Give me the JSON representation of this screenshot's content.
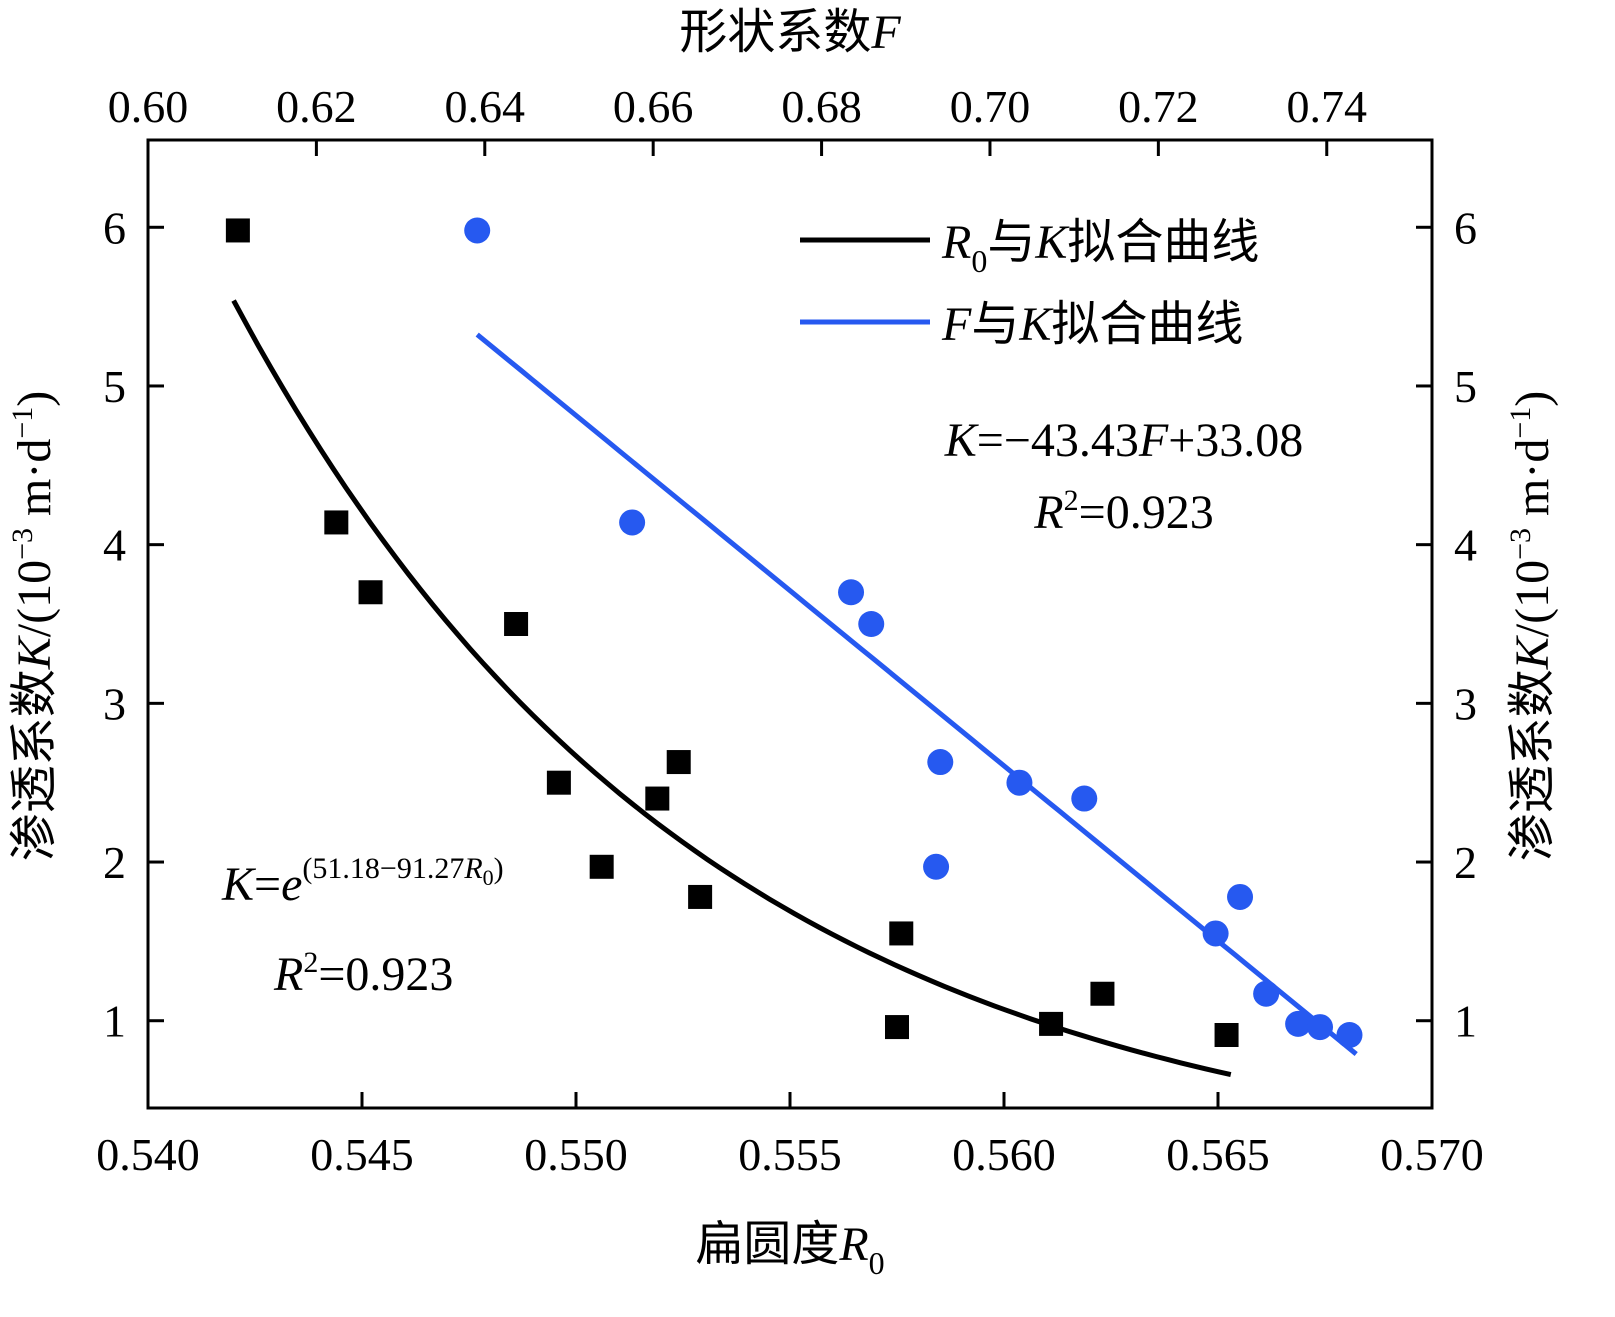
{
  "chart_data": {
    "type": "scatter",
    "title": "",
    "x_bottom": {
      "label": "扁圆度R0",
      "label_main": "扁圆度",
      "label_var": "R",
      "label_sub": "0",
      "range": [
        0.54,
        0.57
      ],
      "ticks": [
        "0.540",
        "0.545",
        "0.550",
        "0.555",
        "0.560",
        "0.565",
        "0.570"
      ],
      "tick_values": [
        0.54,
        0.545,
        0.55,
        0.555,
        0.56,
        0.565,
        0.57
      ]
    },
    "x_top": {
      "label": "形状系数F",
      "label_main": "形状系数",
      "label_var": "F",
      "range": [
        0.6,
        0.7525
      ],
      "ticks": [
        "0.60",
        "0.62",
        "0.64",
        "0.66",
        "0.68",
        "0.70",
        "0.72",
        "0.74"
      ],
      "tick_values": [
        0.6,
        0.62,
        0.64,
        0.66,
        0.68,
        0.7,
        0.72,
        0.74
      ]
    },
    "y": {
      "label": "渗透系数K/(10−3 m·d−1)",
      "label_main": "渗透系数",
      "label_var": "K",
      "label_unit_a": "/(10",
      "label_sup1": "−3",
      "label_unit_b": " m·d",
      "label_sup2": "−1",
      "label_unit_c": ")",
      "range": [
        0.45,
        6.55
      ],
      "ticks": [
        "1",
        "2",
        "3",
        "4",
        "5",
        "6"
      ],
      "tick_values": [
        1,
        2,
        3,
        4,
        5,
        6
      ]
    },
    "series": [
      {
        "name": "R0与K拟合曲线",
        "marker": "square",
        "color": "#000000",
        "axis": "bottom",
        "points": [
          [
            0.5421,
            5.98
          ],
          [
            0.5444,
            4.14
          ],
          [
            0.5452,
            3.7
          ],
          [
            0.5486,
            3.5
          ],
          [
            0.5496,
            2.5
          ],
          [
            0.5506,
            1.97
          ],
          [
            0.5519,
            2.4
          ],
          [
            0.5524,
            2.63
          ],
          [
            0.5529,
            1.78
          ],
          [
            0.5575,
            0.96
          ],
          [
            0.5576,
            1.55
          ],
          [
            0.5611,
            0.98
          ],
          [
            0.5623,
            1.17
          ],
          [
            0.5652,
            0.91
          ]
        ],
        "fit": {
          "kind": "exp",
          "a": 51.18,
          "b": 91.27,
          "x_start": 0.542,
          "x_end": 0.5653
        }
      },
      {
        "name": "F与K拟合曲线",
        "marker": "circle",
        "color": "#2659F0",
        "axis": "top",
        "points": [
          [
            0.6391,
            5.98
          ],
          [
            0.6575,
            4.14
          ],
          [
            0.6835,
            3.7
          ],
          [
            0.6859,
            3.5
          ],
          [
            0.6941,
            2.63
          ],
          [
            0.6936,
            1.97
          ],
          [
            0.7035,
            2.5
          ],
          [
            0.7112,
            2.4
          ],
          [
            0.7268,
            1.55
          ],
          [
            0.7297,
            1.78
          ],
          [
            0.7328,
            1.17
          ],
          [
            0.7366,
            0.98
          ],
          [
            0.7392,
            0.96
          ],
          [
            0.7427,
            0.91
          ]
        ],
        "fit": {
          "kind": "linear",
          "slope": -43.43,
          "intercept": 33.08,
          "x_start": 0.6391,
          "x_end": 0.7435
        }
      }
    ],
    "legend": {
      "placement": "top-right",
      "items": [
        {
          "var": "R",
          "sub": "0",
          "text": "与K拟合曲线",
          "text_a": "与",
          "var2": "K",
          "text_b": "拟合曲线",
          "color": "#000000"
        },
        {
          "var": "F",
          "sub": "",
          "text": "与K拟合曲线",
          "text_a": "与",
          "var2": "K",
          "text_b": "拟合曲线",
          "color": "#2659F0"
        }
      ]
    },
    "annotations": {
      "linear_eq": {
        "k": "K",
        "eq1": "=−43.43",
        "f": "F",
        "eq2": "+33.08"
      },
      "linear_r2": {
        "r": "R",
        "sup": "2",
        "val": "=0.923"
      },
      "exp_eq": {
        "k": "K",
        "eq": "=",
        "e": "e",
        "exp1": "(51.18−91.27",
        "exp_r": "R",
        "exp_sub": "0",
        "exp2": ")"
      },
      "exp_r2": {
        "r": "R",
        "sup": "2",
        "val": "=0.923"
      }
    },
    "grid": false
  }
}
